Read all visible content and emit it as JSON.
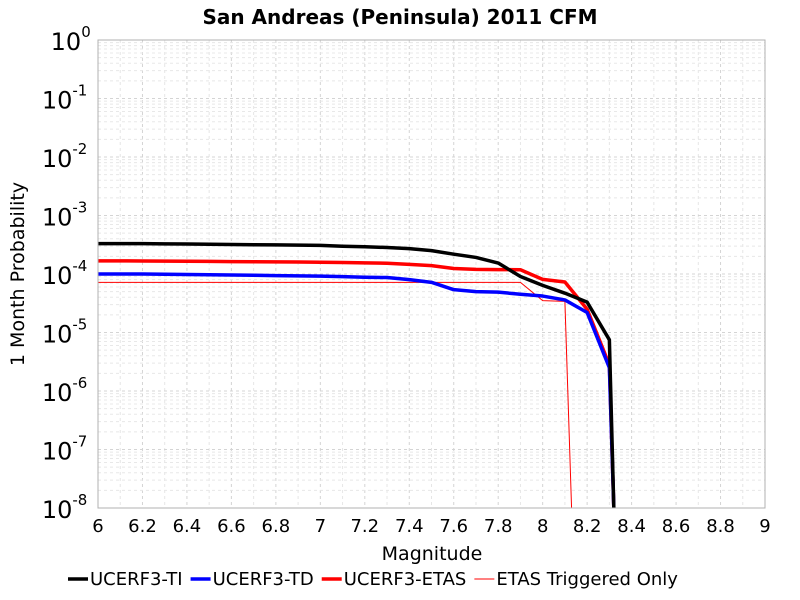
{
  "chart_data": {
    "type": "line",
    "title": "San Andreas (Peninsula) 2011 CFM",
    "xlabel": "Magnitude",
    "ylabel": "1 Month Probability",
    "xlim": [
      6,
      9
    ],
    "ylim": [
      1e-08,
      1
    ],
    "yscale": "log",
    "grid": true,
    "legend_position": "bottom",
    "x_ticks": [
      "6",
      "6.2",
      "6.4",
      "6.6",
      "6.8",
      "7",
      "7.2",
      "7.4",
      "7.6",
      "7.8",
      "8",
      "8.2",
      "8.4",
      "8.6",
      "8.8",
      "9"
    ],
    "y_ticks": [
      {
        "base": "10",
        "exp": "0"
      },
      {
        "base": "10",
        "exp": "-1"
      },
      {
        "base": "10",
        "exp": "-2"
      },
      {
        "base": "10",
        "exp": "-3"
      },
      {
        "base": "10",
        "exp": "-4"
      },
      {
        "base": "10",
        "exp": "-5"
      },
      {
        "base": "10",
        "exp": "-6"
      },
      {
        "base": "10",
        "exp": "-7"
      },
      {
        "base": "10",
        "exp": "-8"
      }
    ],
    "series": [
      {
        "name": "UCERF3-TI",
        "color": "#000000",
        "width": 3.5,
        "x": [
          6.0,
          6.1,
          6.2,
          6.3,
          6.4,
          6.5,
          6.6,
          6.7,
          6.8,
          6.9,
          7.0,
          7.1,
          7.2,
          7.3,
          7.4,
          7.5,
          7.6,
          7.7,
          7.8,
          7.9,
          8.0,
          8.1,
          8.2,
          8.3,
          8.32
        ],
        "y": [
          0.00033,
          0.00033,
          0.00033,
          0.000327,
          0.000325,
          0.000322,
          0.00032,
          0.000317,
          0.000314,
          0.000311,
          0.000308,
          0.000298,
          0.000292,
          0.000284,
          0.000271,
          0.000251,
          0.000218,
          0.000192,
          0.000154,
          9.05e-05,
          6.4e-05,
          4.7e-05,
          3.3e-05,
          7.5e-06,
          1e-08
        ]
      },
      {
        "name": "UCERF3-TD",
        "color": "#0000ff",
        "width": 3.5,
        "x": [
          6.0,
          6.1,
          6.2,
          6.3,
          6.4,
          6.5,
          6.6,
          6.7,
          6.8,
          6.9,
          7.0,
          7.1,
          7.2,
          7.3,
          7.4,
          7.5,
          7.6,
          7.7,
          7.8,
          7.9,
          8.0,
          8.1,
          8.2,
          8.3,
          8.32
        ],
        "y": [
          0.0001,
          0.0001,
          0.0001,
          9.9e-05,
          9.8e-05,
          9.7e-05,
          9.6e-05,
          9.5e-05,
          9.4e-05,
          9.3e-05,
          9.2e-05,
          9e-05,
          8.8e-05,
          8.7e-05,
          8e-05,
          7.2e-05,
          5.4e-05,
          5e-05,
          4.9e-05,
          4.5e-05,
          4.2e-05,
          3.6e-05,
          2.2e-05,
          2.5e-06,
          1e-08
        ]
      },
      {
        "name": "UCERF3-ETAS",
        "color": "#ff0000",
        "width": 3.5,
        "x": [
          6.0,
          6.1,
          6.2,
          6.3,
          6.4,
          6.5,
          6.6,
          6.7,
          6.8,
          6.9,
          7.0,
          7.1,
          7.2,
          7.3,
          7.4,
          7.5,
          7.6,
          7.7,
          7.8,
          7.9,
          8.0,
          8.1,
          8.2,
          8.3,
          8.32
        ],
        "y": [
          0.000168,
          0.000168,
          0.000167,
          0.000166,
          0.000165,
          0.000164,
          0.000163,
          0.000162,
          0.000161,
          0.00016,
          0.000159,
          0.000157,
          0.000155,
          0.000153,
          0.000146,
          0.000139,
          0.000124,
          0.00012,
          0.000119,
          0.000118,
          8.1e-05,
          7.3e-05,
          2.5e-05,
          2.8e-06,
          1e-08
        ]
      },
      {
        "name": "ETAS Triggered Only",
        "color": "#ff0000",
        "width": 1,
        "x": [
          6.0,
          6.2,
          6.4,
          6.6,
          6.8,
          7.0,
          7.2,
          7.4,
          7.5,
          7.6,
          7.7,
          7.8,
          7.9,
          8.0,
          8.1,
          8.13
        ],
        "y": [
          7.2e-05,
          7.2e-05,
          7.2e-05,
          7.2e-05,
          7.2e-05,
          7.2e-05,
          7.2e-05,
          7.2e-05,
          7.2e-05,
          7.2e-05,
          7.2e-05,
          7.2e-05,
          7.2e-05,
          3.5e-05,
          3.4e-05,
          1e-08
        ]
      }
    ]
  }
}
